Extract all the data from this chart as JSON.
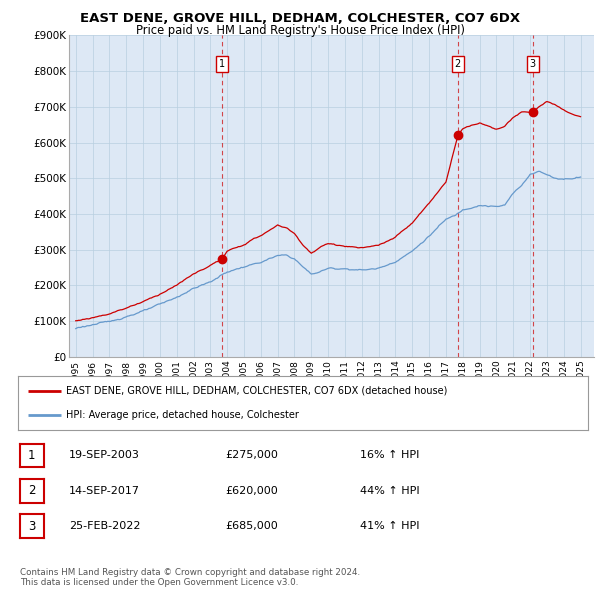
{
  "title": "EAST DENE, GROVE HILL, DEDHAM, COLCHESTER, CO7 6DX",
  "subtitle": "Price paid vs. HM Land Registry's House Price Index (HPI)",
  "ylim": [
    0,
    900000
  ],
  "yticks": [
    0,
    100000,
    200000,
    300000,
    400000,
    500000,
    600000,
    700000,
    800000,
    900000
  ],
  "ytick_labels": [
    "£0",
    "£100K",
    "£200K",
    "£300K",
    "£400K",
    "£500K",
    "£600K",
    "£700K",
    "£800K",
    "£900K"
  ],
  "xlim_start": 1994.6,
  "xlim_end": 2025.8,
  "sale_dates": [
    2003.72,
    2017.71,
    2022.15
  ],
  "sale_prices": [
    275000,
    620000,
    685000
  ],
  "sale_labels": [
    "1",
    "2",
    "3"
  ],
  "legend_line1": "EAST DENE, GROVE HILL, DEDHAM, COLCHESTER, CO7 6DX (detached house)",
  "legend_line2": "HPI: Average price, detached house, Colchester",
  "table_rows": [
    {
      "num": "1",
      "date": "19-SEP-2003",
      "price": "£275,000",
      "hpi": "16% ↑ HPI"
    },
    {
      "num": "2",
      "date": "14-SEP-2017",
      "price": "£620,000",
      "hpi": "44% ↑ HPI"
    },
    {
      "num": "3",
      "date": "25-FEB-2022",
      "price": "£685,000",
      "hpi": "41% ↑ HPI"
    }
  ],
  "footer": "Contains HM Land Registry data © Crown copyright and database right 2024.\nThis data is licensed under the Open Government Licence v3.0.",
  "red_color": "#cc0000",
  "blue_color": "#6699cc",
  "chart_bg": "#dde8f5",
  "background_color": "#ffffff",
  "grid_color": "#b8cfe0"
}
